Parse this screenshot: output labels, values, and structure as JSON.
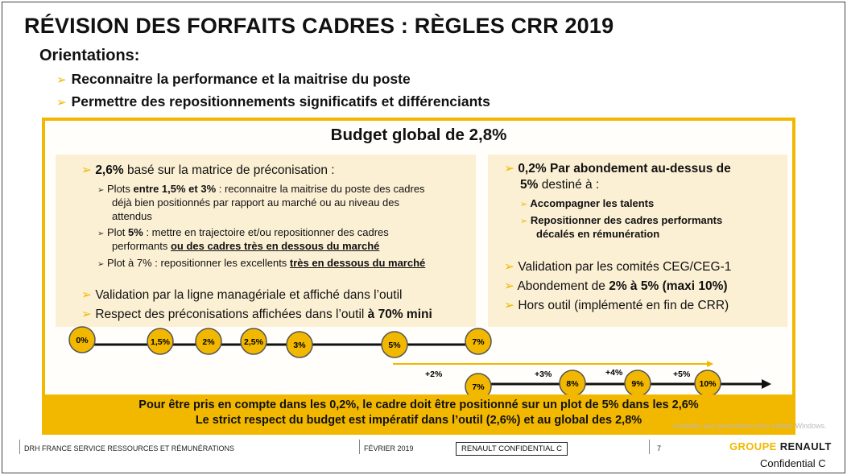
{
  "title": "RÉVISION DES FORFAITS CADRES : RÈGLES CRR 2019",
  "subtitle": "Orientations:",
  "orientations": [
    "Reconnaitre la performance et la maitrise du poste",
    "Permettre des repositionnements significatifs et différenciants"
  ],
  "budget": {
    "title": "Budget global de 2,8%",
    "left": {
      "head_bold": "2,6%",
      "head_rest": " basé sur la matrice de préconisation :",
      "sub1_a": "Plots ",
      "sub1_b": "entre 1,5% et 3%",
      "sub1_c": " : reconnaitre la maitrise du poste des cadres",
      "sub1_line2": "déjà bien positionnés par rapport au marché ou au niveau des",
      "sub1_line3": "attendus",
      "sub2_a": "Plot ",
      "sub2_b": "5%",
      "sub2_c": " : mettre en trajectoire et/ou repositionner des cadres",
      "sub2_line2a": "performants ",
      "sub2_line2b": "ou des cadres très en dessous du marché",
      "sub3_a": "Plot à 7% : repositionner les excellents ",
      "sub3_b": "très en dessous du marché",
      "val1": "Validation par la ligne managériale et affiché dans l’outil",
      "val2_a": "Respect des préconisations affichées dans l’outil ",
      "val2_b": "à 70% mini"
    },
    "right": {
      "head_a": "0,2% Par abondement au-dessus de",
      "head_b": "5%",
      "head_c": " destiné à :",
      "sub1": "Accompagner les talents",
      "sub2_line1": "Repositionner des cadres performants",
      "sub2_line2": "décalés en rémunération",
      "b1": "Validation par les comités CEG/CEG-1",
      "b2_a": "Abondement de ",
      "b2_b": "2% à 5%  (maxi 10%)",
      "b3": "Hors outil (implémenté en fin de CRR)"
    },
    "timeline_top": [
      "0%",
      "1,5%",
      "2%",
      "2,5%",
      "3%",
      "5%",
      "7%"
    ],
    "timeline_bottom": [
      "7%",
      "8%",
      "9%",
      "10%"
    ],
    "increments": [
      "+2%",
      "+3%",
      "+4%",
      "+5%"
    ],
    "footer_line1": "Pour être pris en compte dans les 0,2%, le cadre doit être positionné sur un plot de 5% dans les 2,6%",
    "footer_line2": "Le strict respect du budget est impératif dans l’outil (2,6%) et au global des 2,8%"
  },
  "footer": {
    "dept": "DRH FRANCE SERVICE RESSOURCES ET RÉMUNÉRATIONS",
    "date": "FÉVRIER 2019",
    "confidential": "RENAULT CONFIDENTIAL C",
    "page": "7",
    "brand_a": "GROUPE",
    "brand_b": "RENAULT",
    "conf_c": "Confidential C"
  },
  "watermark": "Accédez aux paramètres pour activer Windows.",
  "colors": {
    "accent": "#f2b800",
    "panel": "#fcf0d4"
  }
}
